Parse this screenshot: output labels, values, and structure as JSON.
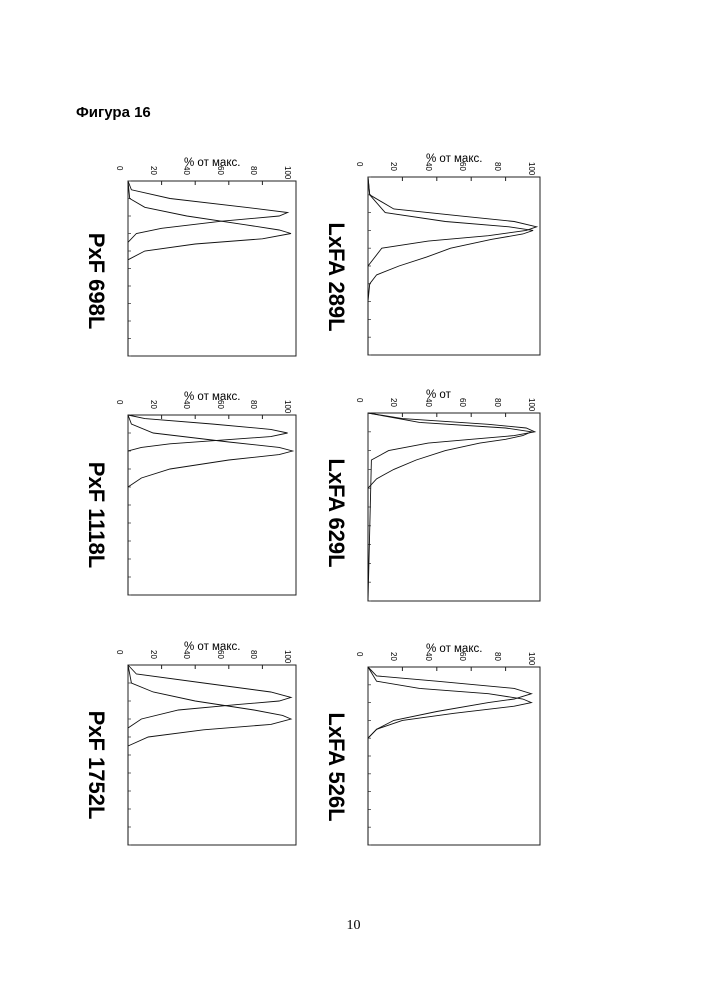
{
  "figure_title": "Фигура 16",
  "page_number": "10",
  "chart_data": [
    {
      "type": "line",
      "sample_label": "LxFA 289L",
      "ylabel": "% от макс.",
      "y_ticks": [
        "0",
        "20",
        "40",
        "60",
        "80",
        "100"
      ],
      "ylim": [
        0,
        100
      ],
      "xlim": [
        0,
        100
      ],
      "series": [
        {
          "x": [
            0,
            10,
            20,
            25,
            28,
            30,
            32,
            35,
            40,
            45,
            50,
            55,
            60,
            70,
            80,
            100
          ],
          "y": [
            0,
            1,
            10,
            45,
            82,
            96,
            90,
            72,
            48,
            34,
            18,
            5,
            1,
            0,
            0,
            0
          ]
        },
        {
          "x": [
            0,
            10,
            18,
            22,
            25,
            28,
            30,
            33,
            36,
            40,
            50,
            100
          ],
          "y": [
            0,
            1,
            15,
            55,
            85,
            98,
            92,
            70,
            35,
            8,
            0,
            0
          ]
        }
      ]
    },
    {
      "type": "line",
      "sample_label": "PxF 698L",
      "ylabel": "% от макс.",
      "y_ticks": [
        "0",
        "20",
        "40",
        "60",
        "80",
        "100"
      ],
      "ylim": [
        0,
        100
      ],
      "xlim": [
        0,
        100
      ],
      "series": [
        {
          "x": [
            0,
            5,
            10,
            15,
            18,
            20,
            23,
            27,
            30,
            35,
            100
          ],
          "y": [
            0,
            2,
            25,
            70,
            95,
            90,
            55,
            20,
            5,
            0,
            0
          ]
        },
        {
          "x": [
            0,
            10,
            15,
            20,
            25,
            28,
            30,
            33,
            36,
            40,
            45,
            100
          ],
          "y": [
            0,
            1,
            10,
            35,
            70,
            90,
            97,
            80,
            40,
            10,
            0,
            0
          ]
        }
      ]
    },
    {
      "type": "line",
      "sample_label": "LxFA 629L",
      "ylabel": "% от",
      "y_ticks": [
        "0",
        "20",
        "40",
        "60",
        "80",
        "100"
      ],
      "ylim": [
        0,
        100
      ],
      "xlim": [
        0,
        100
      ],
      "series": [
        {
          "x": [
            0,
            5,
            8,
            10,
            12,
            14,
            16,
            20,
            25,
            30,
            35,
            40,
            100
          ],
          "y": [
            0,
            30,
            80,
            95,
            90,
            80,
            65,
            45,
            28,
            15,
            5,
            0,
            0
          ]
        },
        {
          "x": [
            0,
            3,
            6,
            8,
            10,
            12,
            14,
            16,
            20,
            25,
            100
          ],
          "y": [
            0,
            20,
            70,
            92,
            97,
            85,
            60,
            35,
            12,
            2,
            0
          ]
        }
      ]
    },
    {
      "type": "line",
      "sample_label": "PxF 1118L",
      "ylabel": "% от макс.",
      "y_ticks": [
        "0",
        "20",
        "40",
        "60",
        "80",
        "100"
      ],
      "ylim": [
        0,
        100
      ],
      "xlim": [
        0,
        100
      ],
      "series": [
        {
          "x": [
            0,
            2,
            5,
            8,
            10,
            12,
            14,
            16,
            18,
            20,
            100
          ],
          "y": [
            0,
            10,
            50,
            85,
            95,
            85,
            55,
            25,
            8,
            0,
            0
          ]
        },
        {
          "x": [
            0,
            5,
            10,
            15,
            18,
            20,
            22,
            25,
            30,
            35,
            40,
            100
          ],
          "y": [
            0,
            2,
            15,
            60,
            90,
            98,
            90,
            60,
            25,
            8,
            0,
            0
          ]
        }
      ]
    },
    {
      "type": "line",
      "sample_label": "LxFA 526L",
      "ylabel": "% от макс.",
      "y_ticks": [
        "0",
        "20",
        "40",
        "60",
        "80",
        "100"
      ],
      "ylim": [
        0,
        100
      ],
      "xlim": [
        0,
        100
      ],
      "series": [
        {
          "x": [
            0,
            5,
            8,
            12,
            15,
            18,
            20,
            25,
            30,
            35,
            40,
            100
          ],
          "y": [
            0,
            5,
            40,
            85,
            95,
            85,
            70,
            40,
            15,
            5,
            0,
            0
          ]
        },
        {
          "x": [
            0,
            8,
            12,
            15,
            18,
            20,
            22,
            26,
            30,
            35,
            40,
            100
          ],
          "y": [
            0,
            5,
            30,
            70,
            90,
            95,
            85,
            50,
            20,
            5,
            0,
            0
          ]
        }
      ]
    },
    {
      "type": "line",
      "sample_label": "PxF 1752L",
      "ylabel": "% от макс.",
      "y_ticks": [
        "0",
        "20",
        "40",
        "60",
        "80",
        "100"
      ],
      "ylim": [
        0,
        100
      ],
      "xlim": [
        0,
        100
      ],
      "series": [
        {
          "x": [
            0,
            5,
            10,
            15,
            18,
            20,
            22,
            25,
            30,
            35,
            100
          ],
          "y": [
            0,
            5,
            45,
            85,
            97,
            90,
            65,
            30,
            8,
            0,
            0
          ]
        },
        {
          "x": [
            0,
            10,
            15,
            20,
            25,
            28,
            30,
            33,
            36,
            40,
            45,
            100
          ],
          "y": [
            0,
            2,
            15,
            40,
            75,
            92,
            97,
            85,
            45,
            12,
            0,
            0
          ]
        }
      ]
    }
  ]
}
